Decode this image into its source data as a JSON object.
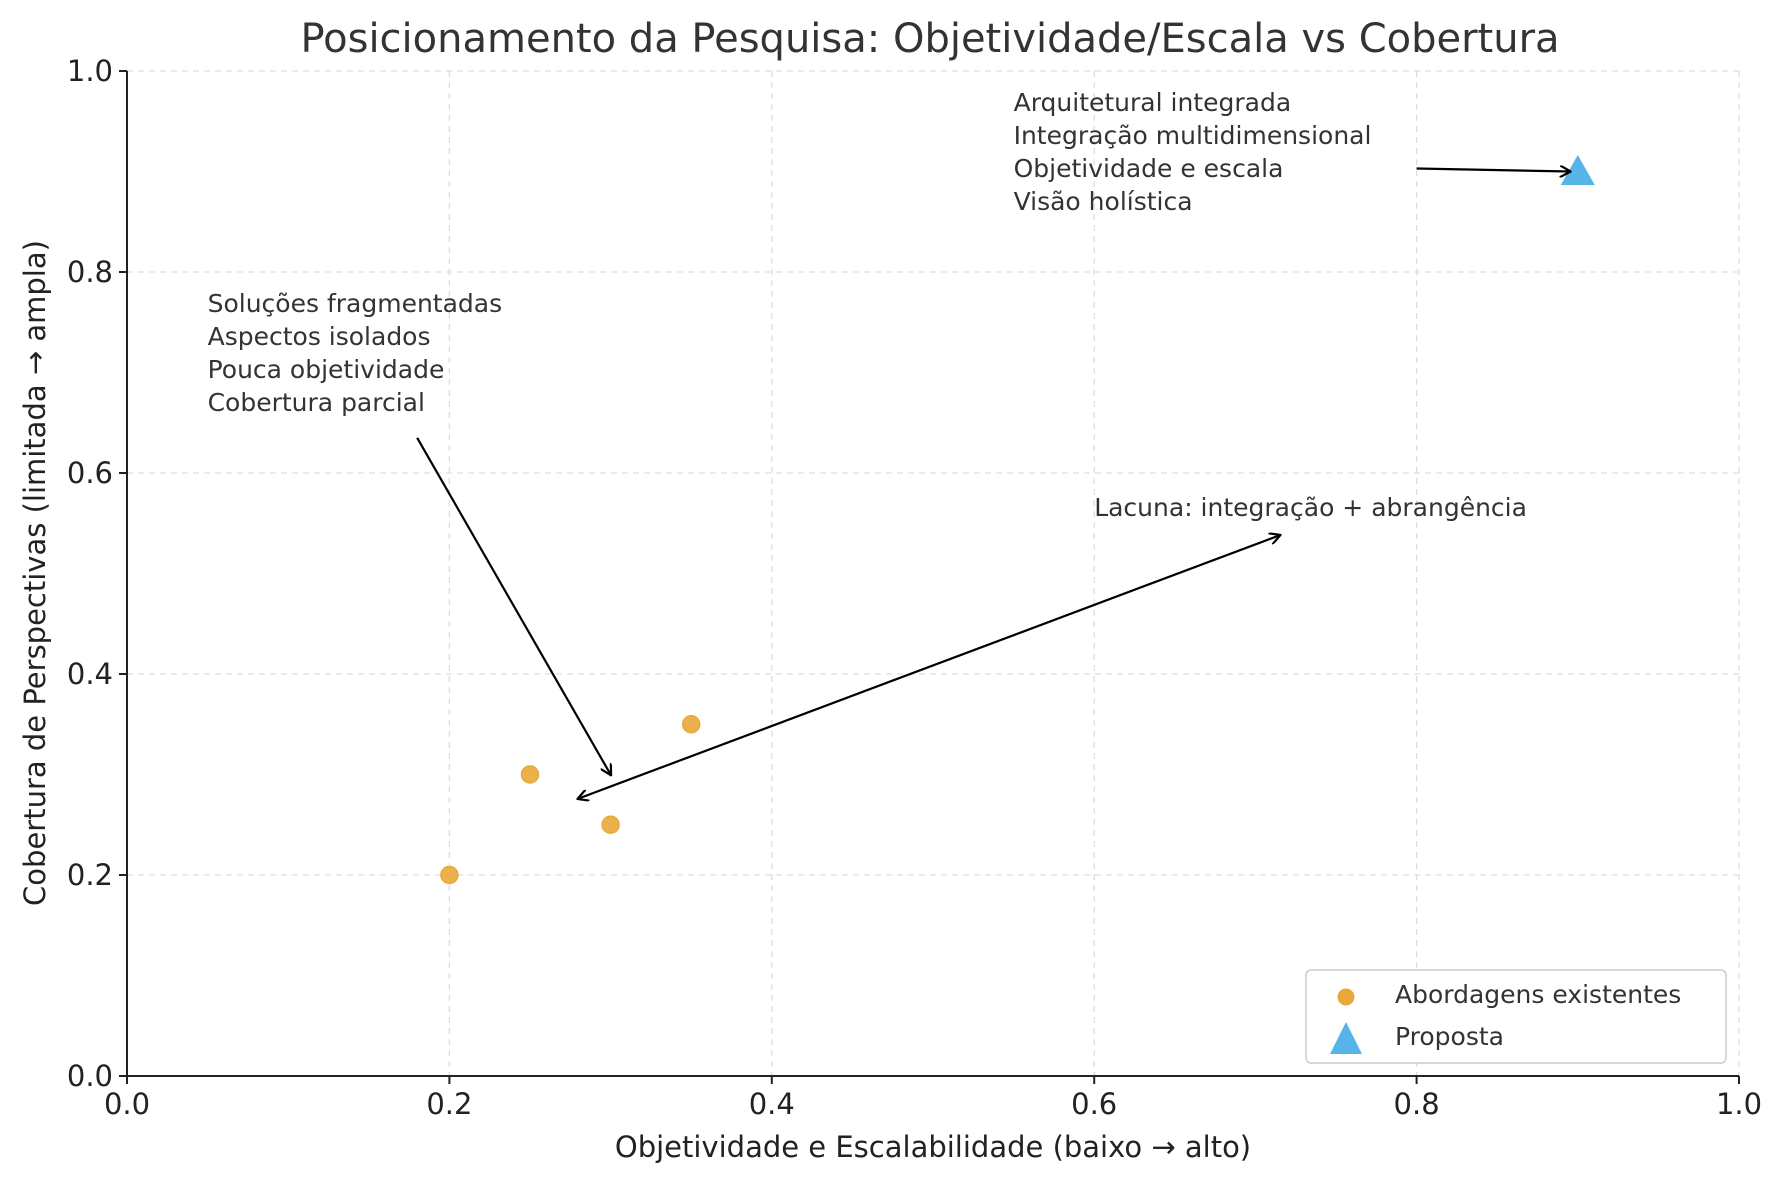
{
  "chart_data": {
    "type": "scatter",
    "title": "Posicionamento da Pesquisa: Objetividade/Escala vs Cobertura",
    "xlabel": "Objetividade e Escalabilidade (baixo → alto)",
    "ylabel": "Cobertura de Perspectivas (limitada → ampla)",
    "xlim": [
      0.0,
      1.0
    ],
    "ylim": [
      0.0,
      1.0
    ],
    "xticks": [
      "0.0",
      "0.2",
      "0.4",
      "0.6",
      "0.8",
      "1.0"
    ],
    "yticks": [
      "0.0",
      "0.2",
      "0.4",
      "0.6",
      "0.8",
      "1.0"
    ],
    "grid": true,
    "legend_position": "bottom-right",
    "series": [
      {
        "name": "Abordagens existentes",
        "marker": "circle",
        "color": "#E8A93A",
        "points": [
          {
            "x": 0.2,
            "y": 0.2
          },
          {
            "x": 0.25,
            "y": 0.3
          },
          {
            "x": 0.3,
            "y": 0.25
          },
          {
            "x": 0.35,
            "y": 0.35
          }
        ]
      },
      {
        "name": "Proposta",
        "marker": "triangle",
        "color": "#56B4E9",
        "points": [
          {
            "x": 0.9,
            "y": 0.9
          }
        ]
      }
    ],
    "annotations": [
      {
        "lines": [
          "Soluções fragmentadas",
          "Aspectos isolados",
          "Pouca objetividade",
          "Cobertura parcial"
        ],
        "text_x": 0.05,
        "text_y": 0.76,
        "arrow_from": {
          "x": 0.18,
          "y": 0.635
        },
        "arrow_to": {
          "x": 0.3,
          "y": 0.3
        },
        "arrow_head": "end"
      },
      {
        "lines": [
          "Arquitetural integrada",
          "Integração multidimensional",
          "Objetividade e escala",
          "Visão holística"
        ],
        "text_x": 0.55,
        "text_y": 0.96,
        "arrow_from": {
          "x": 0.8,
          "y": 0.903
        },
        "arrow_to": {
          "x": 0.895,
          "y": 0.9
        },
        "arrow_head": "end"
      },
      {
        "lines": [
          "Lacuna: integração + abrangência"
        ],
        "text_x": 0.6,
        "text_y": 0.557,
        "arrow_from": {
          "x": 0.28,
          "y": 0.276
        },
        "arrow_to": {
          "x": 0.715,
          "y": 0.538
        },
        "arrow_head": "both"
      }
    ]
  }
}
